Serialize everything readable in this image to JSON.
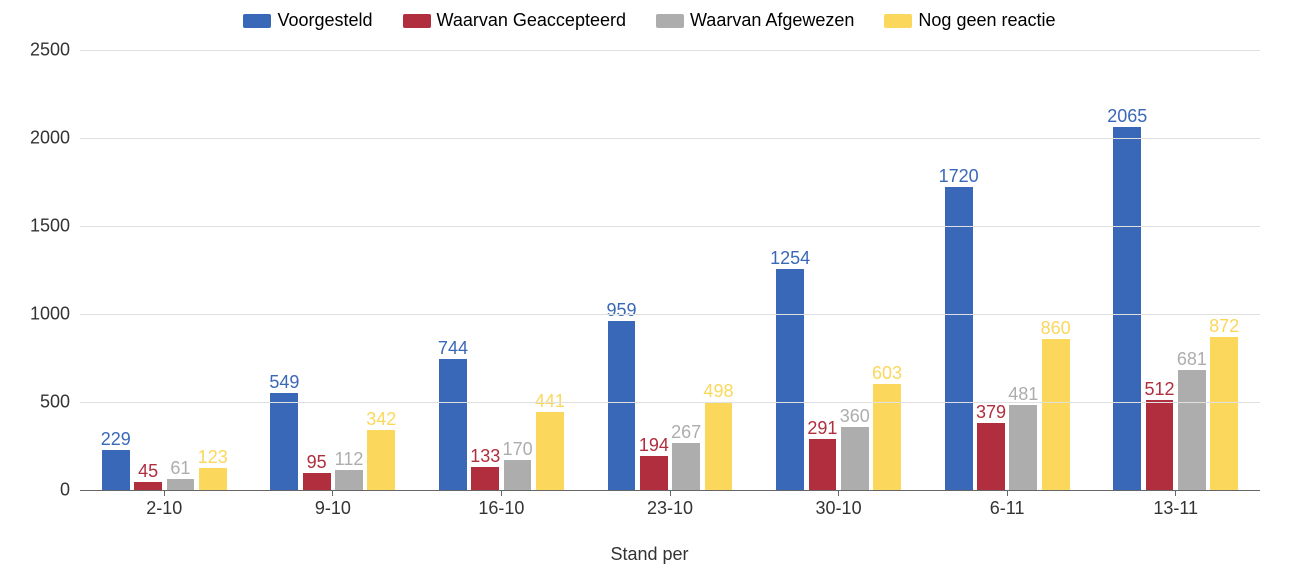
{
  "chart": {
    "type": "bar",
    "background_color": "#ffffff",
    "grid_color": "#e0e0e0",
    "axis_color": "#666666",
    "tick_label_color": "#333333",
    "tick_fontsize": 18,
    "legend_fontsize": 18,
    "data_label_fontsize": 18,
    "x_axis_title": "Stand per",
    "ylim": [
      0,
      2500
    ],
    "ytick_step": 500,
    "categories": [
      "2-10",
      "9-10",
      "16-10",
      "23-10",
      "30-10",
      "6-11",
      "13-11"
    ],
    "series": [
      {
        "name": "Voorgesteld",
        "color": "#3a68b8",
        "values": [
          229,
          549,
          744,
          959,
          1254,
          1720,
          2065
        ]
      },
      {
        "name": "Waarvan Geaccepteerd",
        "color": "#b02e3d",
        "values": [
          45,
          95,
          133,
          194,
          291,
          379,
          512
        ]
      },
      {
        "name": "Waarvan Afgewezen",
        "color": "#adadad",
        "values": [
          61,
          112,
          170,
          267,
          360,
          481,
          681
        ]
      },
      {
        "name": "Nog geen reactie",
        "color": "#fbd75b",
        "values": [
          123,
          342,
          441,
          498,
          603,
          860,
          872
        ]
      }
    ],
    "bar_group_width": 0.74,
    "bar_width": 0.165
  }
}
